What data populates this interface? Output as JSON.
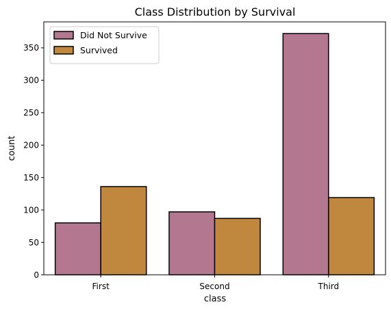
{
  "chart_data": {
    "type": "bar",
    "title": "Class Distribution by Survival",
    "xlabel": "class",
    "ylabel": "count",
    "categories": [
      "First",
      "Second",
      "Third"
    ],
    "series": [
      {
        "name": "Did Not Survive",
        "values": [
          80,
          97,
          372
        ],
        "color": "#b3778f"
      },
      {
        "name": "Survived",
        "values": [
          136,
          87,
          119
        ],
        "color": "#c0873f"
      }
    ],
    "ylim": [
      0,
      390
    ],
    "yticks": [
      0,
      50,
      100,
      150,
      200,
      250,
      300,
      350
    ],
    "grid": false,
    "legend_position": "top-left"
  }
}
